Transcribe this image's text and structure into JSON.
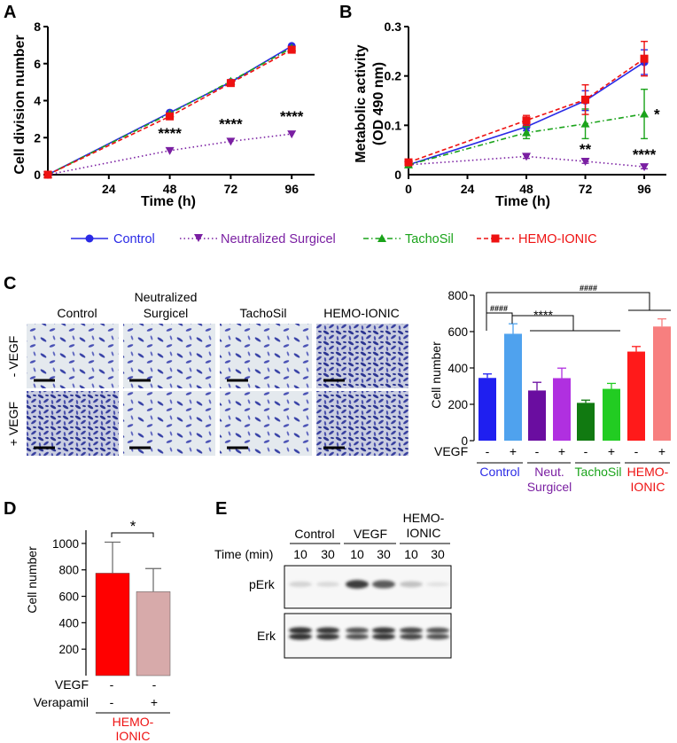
{
  "panel_labels": {
    "a": "A",
    "b": "B",
    "c": "C",
    "d": "D",
    "e": "E"
  },
  "colors": {
    "control": "#2a2ae6",
    "surgicel": "#7a1fa2",
    "tachosil": "#1aa31a",
    "hemo": "#ee1111",
    "c_control_minus": "#1f1ff0",
    "c_control_plus": "#4fa2ee",
    "c_surg_minus": "#6a0da0",
    "c_surg_plus": "#b030e0",
    "c_tacho_minus": "#117a11",
    "c_tacho_plus": "#22cc22",
    "c_hemo_minus": "#ff1a1a",
    "c_hemo_plus": "#f77f7f",
    "d_minus": "#ff0000",
    "d_plus": "#d7aaaa"
  },
  "legend": {
    "control": "Control",
    "surgicel": "Neutralized Surgicel",
    "tachosil": "TachoSil",
    "hemo": "HEMO-IONIC"
  },
  "chart_data": [
    {
      "id": "A",
      "type": "line",
      "title": "",
      "xlabel": "Time (h)",
      "ylabel": "Cell division number",
      "x": [
        0,
        48,
        72,
        96
      ],
      "xticks": [
        24,
        48,
        72,
        96
      ],
      "xlim": [
        0,
        105
      ],
      "ylim": [
        0,
        8
      ],
      "yticks": [
        0,
        2,
        4,
        6,
        8
      ],
      "series": [
        {
          "name": "Control",
          "values": [
            0,
            3.35,
            5.0,
            6.95
          ]
        },
        {
          "name": "Neutralized Surgicel",
          "values": [
            0,
            1.3,
            1.8,
            2.2
          ]
        },
        {
          "name": "TachoSil",
          "values": [
            0,
            3.3,
            5.05,
            6.85
          ]
        },
        {
          "name": "HEMO-IONIC",
          "values": [
            0,
            3.15,
            4.95,
            6.75
          ]
        }
      ],
      "annotations": [
        {
          "x": 48,
          "y": 1.3,
          "text": "****"
        },
        {
          "x": 72,
          "y": 1.8,
          "text": "****"
        },
        {
          "x": 96,
          "y": 2.2,
          "text": "****"
        }
      ]
    },
    {
      "id": "B",
      "type": "line",
      "title": "",
      "xlabel": "Time (h)",
      "ylabel": "Metabolic activity (OD 490 nm)",
      "ylabel_lines": [
        "Metabolic activity",
        "(OD 490 nm)"
      ],
      "x": [
        0,
        48,
        72,
        96
      ],
      "xticks": [
        0,
        24,
        48,
        72,
        96
      ],
      "xlim": [
        0,
        105
      ],
      "ylim": [
        0,
        0.3
      ],
      "yticks": [
        0.1,
        0.2,
        0.3
      ],
      "series": [
        {
          "name": "Control",
          "values": [
            0.02,
            0.097,
            0.15,
            0.228
          ],
          "err": [
            0.003,
            0.008,
            0.02,
            0.025
          ]
        },
        {
          "name": "Neutralized Surgicel",
          "values": [
            0.02,
            0.037,
            0.027,
            0.016
          ],
          "err": [
            0.002,
            0.004,
            0.004,
            0.004
          ]
        },
        {
          "name": "TachoSil",
          "values": [
            0.02,
            0.085,
            0.103,
            0.123
          ],
          "err": [
            0.003,
            0.012,
            0.03,
            0.05
          ]
        },
        {
          "name": "HEMO-IONIC",
          "values": [
            0.025,
            0.11,
            0.152,
            0.235
          ],
          "err": [
            0.003,
            0.01,
            0.03,
            0.035
          ]
        }
      ],
      "annotations": [
        {
          "x": 72,
          "y": 0.027,
          "text": "**"
        },
        {
          "x": 96,
          "y": 0.016,
          "text": "****"
        },
        {
          "x": 96,
          "y": 0.123,
          "text": "*"
        }
      ]
    },
    {
      "id": "C",
      "type": "bar",
      "ylabel": "Cell number",
      "ylim": [
        0,
        800
      ],
      "yticks": [
        0,
        200,
        400,
        600,
        800
      ],
      "categories": [
        "Control -",
        "Control +",
        "Neut. Surgicel -",
        "Neut. Surgicel +",
        "TachoSil -",
        "TachoSil +",
        "HEMO-IONIC -",
        "HEMO-IONIC +"
      ],
      "values": [
        345,
        588,
        276,
        344,
        208,
        285,
        490,
        628
      ],
      "errors": [
        22,
        55,
        45,
        55,
        15,
        30,
        28,
        42
      ],
      "vegf_label": "VEGF",
      "vegf_signs": [
        "-",
        "+",
        "-",
        "+",
        "-",
        "+",
        "-",
        "+"
      ],
      "groups": [
        "Control",
        "Neut.\nSurgicel",
        "TachoSil",
        "HEMO-\nIONIC"
      ],
      "group_lines": [
        [
          "Control"
        ],
        [
          "Neut.",
          "Surgicel"
        ],
        [
          "TachoSil"
        ],
        [
          "HEMO-",
          "IONIC"
        ]
      ],
      "annotations": [
        "####",
        "****",
        "####"
      ]
    },
    {
      "id": "D",
      "type": "bar",
      "ylabel": "Cell number",
      "ylim": [
        0,
        1100
      ],
      "yticks": [
        200,
        400,
        600,
        800,
        1000
      ],
      "categories": [
        "Verapamil -",
        "Verapamil +"
      ],
      "values": [
        775,
        635
      ],
      "errors": [
        235,
        175
      ],
      "row_labels": [
        "VEGF",
        "Verapamil"
      ],
      "vegf_signs": [
        "-",
        "-"
      ],
      "verapamil_signs": [
        "-",
        "+"
      ],
      "group_lines": [
        "HEMO-",
        "IONIC"
      ],
      "annotations": [
        "*"
      ]
    }
  ],
  "panel_c": {
    "col_headers": [
      [
        "Control"
      ],
      [
        "Neutralized",
        "Surgicel"
      ],
      [
        "TachoSil"
      ],
      [
        "HEMO-IONIC"
      ]
    ],
    "row_labels": [
      "- VEGF",
      "+ VEGF"
    ]
  },
  "panel_e": {
    "groups": [
      [
        "Control"
      ],
      [
        "VEGF"
      ],
      [
        "HEMO-",
        "IONIC"
      ]
    ],
    "time_label": "Time (min)",
    "times": [
      "10",
      "30",
      "10",
      "30",
      "10",
      "30"
    ],
    "blots": [
      "pErk",
      "Erk"
    ],
    "perk_intensity": [
      0.35,
      0.25,
      0.95,
      0.85,
      0.45,
      0.12
    ],
    "erk_intensity": [
      0.95,
      0.9,
      0.7,
      0.9,
      0.8,
      0.7
    ]
  }
}
